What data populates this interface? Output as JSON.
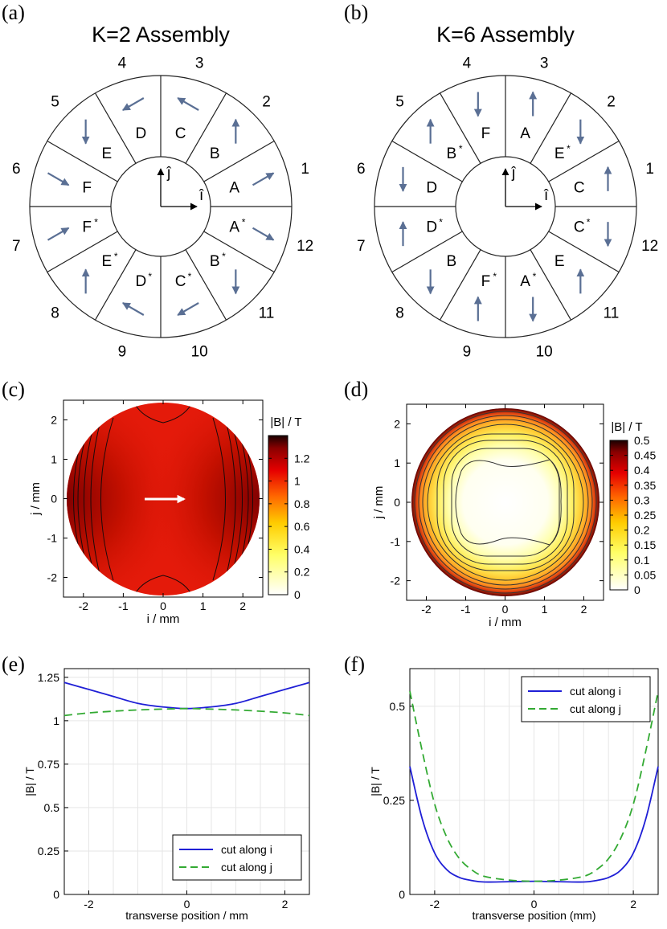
{
  "panel_labels": [
    "(a)",
    "(b)",
    "(c)",
    "(d)",
    "(e)",
    "(f)"
  ],
  "assemblies": [
    {
      "title": "K=2 Assembly",
      "segments": [
        {
          "number": "1",
          "letter": "A",
          "star": false,
          "arrow_deg": 30
        },
        {
          "number": "2",
          "letter": "B",
          "star": false,
          "arrow_deg": 90
        },
        {
          "number": "3",
          "letter": "C",
          "star": false,
          "arrow_deg": 150
        },
        {
          "number": "4",
          "letter": "D",
          "star": false,
          "arrow_deg": 210
        },
        {
          "number": "5",
          "letter": "E",
          "star": false,
          "arrow_deg": 270
        },
        {
          "number": "6",
          "letter": "F",
          "star": false,
          "arrow_deg": 330
        },
        {
          "number": "7",
          "letter": "F",
          "star": true,
          "arrow_deg": 30
        },
        {
          "number": "8",
          "letter": "E",
          "star": true,
          "arrow_deg": 90
        },
        {
          "number": "9",
          "letter": "D",
          "star": true,
          "arrow_deg": 150
        },
        {
          "number": "10",
          "letter": "C",
          "star": true,
          "arrow_deg": 210
        },
        {
          "number": "11",
          "letter": "B",
          "star": true,
          "arrow_deg": 270
        },
        {
          "number": "12",
          "letter": "A",
          "star": true,
          "arrow_deg": 330
        }
      ]
    },
    {
      "title": "K=6 Assembly",
      "segments": [
        {
          "number": "1",
          "letter": "C",
          "star": false,
          "arrow_deg": 90
        },
        {
          "number": "2",
          "letter": "E",
          "star": true,
          "arrow_deg": 270
        },
        {
          "number": "3",
          "letter": "A",
          "star": false,
          "arrow_deg": 90
        },
        {
          "number": "4",
          "letter": "F",
          "star": false,
          "arrow_deg": 270
        },
        {
          "number": "5",
          "letter": "B",
          "star": true,
          "arrow_deg": 90
        },
        {
          "number": "6",
          "letter": "D",
          "star": false,
          "arrow_deg": 270
        },
        {
          "number": "7",
          "letter": "D",
          "star": true,
          "arrow_deg": 90
        },
        {
          "number": "8",
          "letter": "B",
          "star": false,
          "arrow_deg": 270
        },
        {
          "number": "9",
          "letter": "F",
          "star": true,
          "arrow_deg": 90
        },
        {
          "number": "10",
          "letter": "A",
          "star": true,
          "arrow_deg": 270
        },
        {
          "number": "11",
          "letter": "E",
          "star": false,
          "arrow_deg": 90
        },
        {
          "number": "12",
          "letter": "C",
          "star": true,
          "arrow_deg": 270
        }
      ]
    }
  ],
  "unit_vectors": {
    "i": "î",
    "j": "ĵ"
  },
  "arrow_color": "#5a6f94",
  "chart_data": [
    {
      "type": "heatmap",
      "panel": "(c)",
      "xlabel": "i / mm",
      "ylabel": "j / mm",
      "colorbar_label": "|B| / T",
      "xlim": [
        -2.5,
        2.5
      ],
      "ylim": [
        -2.5,
        2.5
      ],
      "xticks": [
        "-2",
        "-1",
        "0",
        "1",
        "2"
      ],
      "yticks": [
        "-2",
        "-1",
        "0",
        "1",
        "2"
      ],
      "color_range": [
        0,
        1.4
      ],
      "colorbar_ticks": [
        "0",
        "0.2",
        "0.4",
        "0.6",
        "0.8",
        "1",
        "1.2"
      ],
      "colorbar_tick_values": [
        0,
        0.2,
        0.4,
        0.6,
        0.8,
        1.0,
        1.2
      ],
      "field_direction": "+i"
    },
    {
      "type": "heatmap",
      "panel": "(d)",
      "xlabel": "i / mm",
      "ylabel": "j / mm",
      "colorbar_label": "|B| / T",
      "xlim": [
        -2.5,
        2.5
      ],
      "ylim": [
        -2.5,
        2.5
      ],
      "xticks": [
        "-2",
        "-1",
        "0",
        "1",
        "2"
      ],
      "yticks": [
        "-2",
        "-1",
        "0",
        "1",
        "2"
      ],
      "color_range": [
        0,
        0.5
      ],
      "colorbar_ticks": [
        "0",
        "0.05",
        "0.1",
        "0.15",
        "0.2",
        "0.25",
        "0.3",
        "0.35",
        "0.4",
        "0.45",
        "0.5"
      ],
      "colorbar_tick_values": [
        0,
        0.05,
        0.1,
        0.15,
        0.2,
        0.25,
        0.3,
        0.35,
        0.4,
        0.45,
        0.5
      ]
    },
    {
      "type": "line",
      "panel": "(e)",
      "xlabel": "transverse position / mm",
      "ylabel": "|B| / T",
      "xlim": [
        -2.5,
        2.5
      ],
      "ylim": [
        0,
        1.3
      ],
      "xticks": [
        "-2",
        "0",
        "2"
      ],
      "xtick_values": [
        -2,
        0,
        2
      ],
      "yticks": [
        "0",
        "0.25",
        "0.5",
        "0.75",
        "1",
        "1.25"
      ],
      "ytick_values": [
        0,
        0.25,
        0.5,
        0.75,
        1.0,
        1.25
      ],
      "grid": true,
      "legend_position": "bottom-right",
      "x": [
        -2.5,
        -2,
        -1.5,
        -1,
        -0.5,
        0,
        0.5,
        1,
        1.5,
        2,
        2.5
      ],
      "series": [
        {
          "name": "cut along i",
          "color": "#1f1fd6",
          "dash": "solid",
          "values": [
            1.22,
            1.18,
            1.14,
            1.1,
            1.08,
            1.07,
            1.08,
            1.1,
            1.14,
            1.18,
            1.22
          ]
        },
        {
          "name": "cut along j",
          "color": "#33aa33",
          "dash": "dashed",
          "values": [
            1.03,
            1.045,
            1.055,
            1.062,
            1.067,
            1.07,
            1.067,
            1.062,
            1.055,
            1.045,
            1.03
          ]
        }
      ]
    },
    {
      "type": "line",
      "panel": "(f)",
      "xlabel": "transverse position (mm)",
      "ylabel": "|B| / T",
      "xlim": [
        -2.5,
        2.5
      ],
      "ylim": [
        0,
        0.6
      ],
      "xticks": [
        "-2",
        "0",
        "2"
      ],
      "xtick_values": [
        -2,
        0,
        2
      ],
      "yticks": [
        "0",
        "0.25",
        "0.5"
      ],
      "ytick_values": [
        0,
        0.25,
        0.5
      ],
      "grid": true,
      "legend_position": "top-right",
      "x": [
        -2.5,
        -2.25,
        -2,
        -1.75,
        -1.5,
        -1.25,
        -1,
        -0.5,
        0,
        0.5,
        1,
        1.25,
        1.5,
        1.75,
        2,
        2.25,
        2.5
      ],
      "series": [
        {
          "name": "cut along i",
          "color": "#1f1fd6",
          "dash": "solid",
          "values": [
            0.34,
            0.2,
            0.11,
            0.065,
            0.045,
            0.037,
            0.033,
            0.034,
            0.035,
            0.034,
            0.033,
            0.037,
            0.045,
            0.065,
            0.11,
            0.2,
            0.34
          ]
        },
        {
          "name": "cut along j",
          "color": "#33aa33",
          "dash": "dashed",
          "values": [
            0.54,
            0.38,
            0.24,
            0.15,
            0.095,
            0.065,
            0.048,
            0.038,
            0.035,
            0.038,
            0.048,
            0.065,
            0.095,
            0.15,
            0.24,
            0.38,
            0.54
          ]
        }
      ]
    }
  ]
}
